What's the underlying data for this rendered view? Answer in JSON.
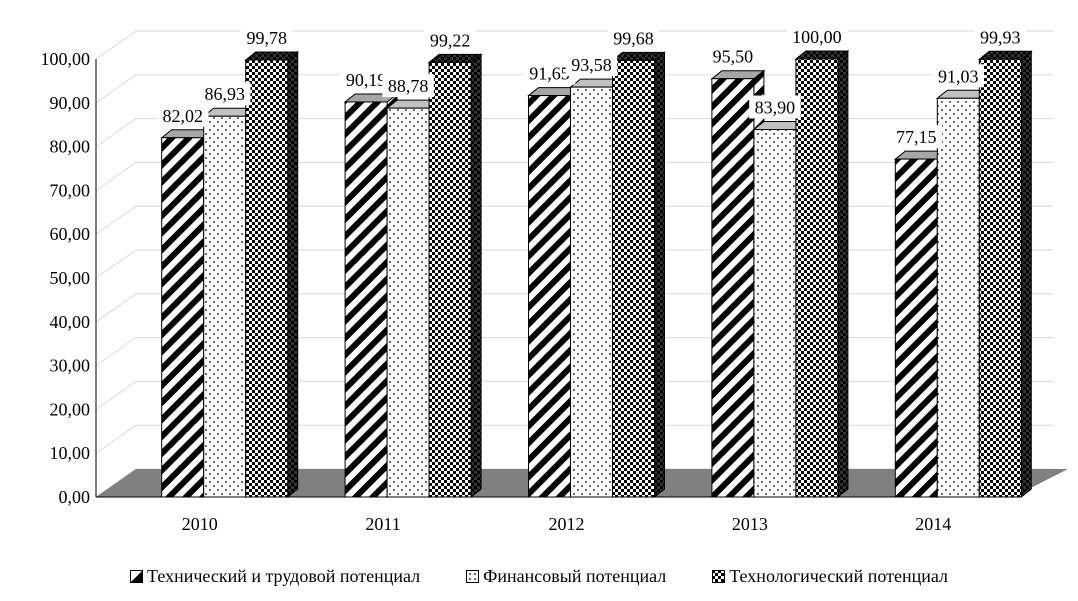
{
  "chart_data": {
    "type": "bar",
    "title": "",
    "xlabel": "",
    "ylabel": "",
    "categories": [
      "2010",
      "2011",
      "2012",
      "2013",
      "2014"
    ],
    "series": [
      {
        "name": "Технический и трудовой потенциал",
        "values": [
          82.02,
          90.19,
          91.65,
          95.5,
          77.15
        ],
        "labels": [
          "82,02",
          "90,19",
          "91,65",
          "95,50",
          "77,15"
        ],
        "pattern": "diagonal-stripes"
      },
      {
        "name": "Финансовый потенциал",
        "values": [
          86.93,
          88.78,
          93.58,
          83.9,
          91.03
        ],
        "labels": [
          "86,93",
          "88,78",
          "93,58",
          "83,90",
          "91,03"
        ],
        "pattern": "dots"
      },
      {
        "name": "Технологический потенциал",
        "values": [
          99.78,
          99.22,
          99.68,
          100.0,
          99.93
        ],
        "labels": [
          "99,78",
          "99,22",
          "99,68",
          "100,00",
          "99,93"
        ],
        "pattern": "checker"
      }
    ],
    "ylim": [
      0,
      100
    ],
    "yticks": [
      "0,00",
      "10,00",
      "20,00",
      "30,00",
      "40,00",
      "50,00",
      "60,00",
      "70,00",
      "80,00",
      "90,00",
      "100,00"
    ],
    "grid": true,
    "legend_position": "bottom",
    "style": "3d-bars"
  }
}
